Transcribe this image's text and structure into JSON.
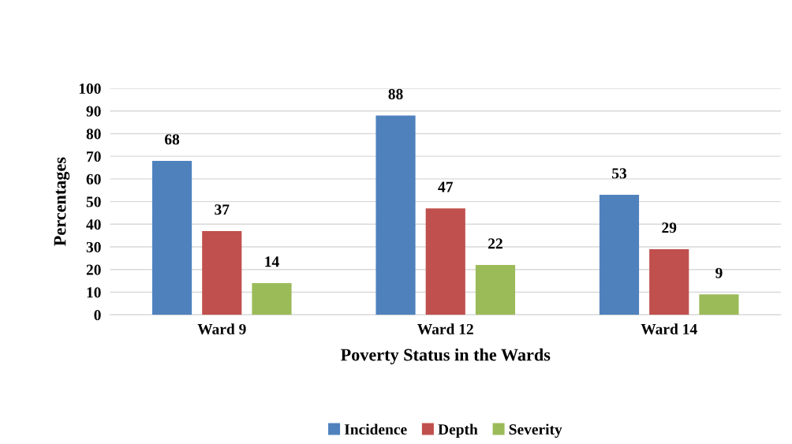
{
  "chart_data": {
    "type": "bar",
    "xlabel": "Poverty Status in the Wards",
    "ylabel": "Percentages",
    "categories": [
      "Ward 9",
      "Ward 12",
      "Ward 14"
    ],
    "series": [
      {
        "name": "Incidence",
        "color": "#4f81bd",
        "values": [
          68,
          88,
          53
        ]
      },
      {
        "name": "Depth",
        "color": "#c0504d",
        "values": [
          37,
          47,
          29
        ]
      },
      {
        "name": "Severity",
        "color": "#9bbb59",
        "values": [
          14,
          22,
          9
        ]
      }
    ],
    "ylim": [
      0,
      100
    ],
    "yticks": [
      0,
      10,
      20,
      30,
      40,
      50,
      60,
      70,
      80,
      90,
      100
    ],
    "grid": "y",
    "legend": "bottom",
    "data_labels": true
  }
}
